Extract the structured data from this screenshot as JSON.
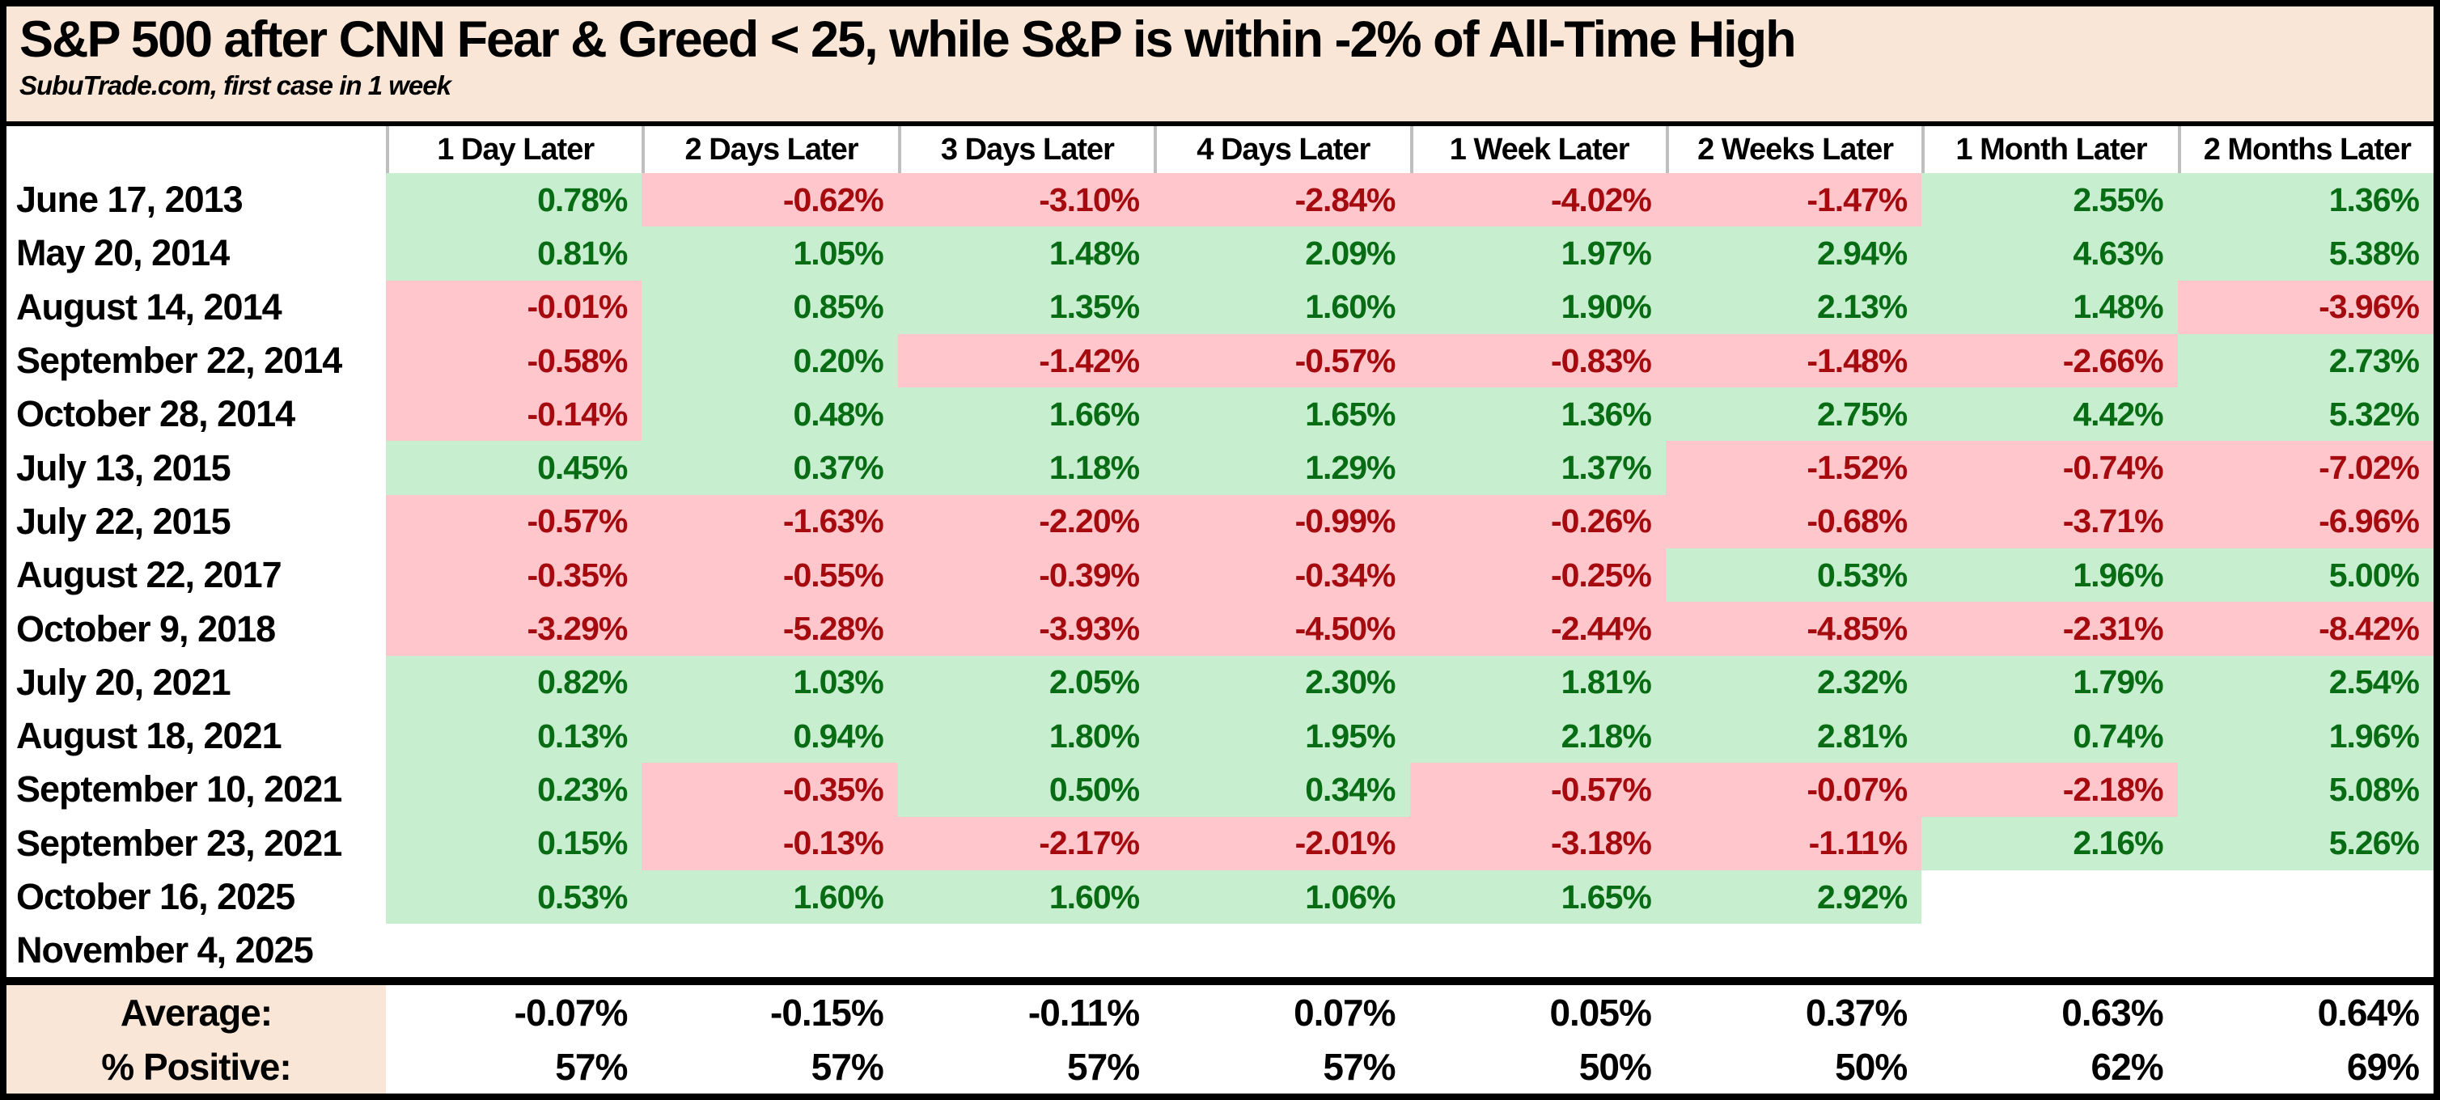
{
  "title": "S&P 500 after CNN Fear & Greed < 25, while S&P is within -2% of All-Time High",
  "subtitle": "SubuTrade.com, first case in 1 week",
  "columns": [
    "1 Day Later",
    "2 Days Later",
    "3 Days Later",
    "4 Days Later",
    "1 Week Later",
    "2 Weeks Later",
    "1 Month Later",
    "2 Months Later"
  ],
  "rows": [
    {
      "date": "June 17, 2013",
      "values": [
        "0.78%",
        "-0.62%",
        "-3.10%",
        "-2.84%",
        "-4.02%",
        "-1.47%",
        "2.55%",
        "1.36%"
      ]
    },
    {
      "date": "May 20, 2014",
      "values": [
        "0.81%",
        "1.05%",
        "1.48%",
        "2.09%",
        "1.97%",
        "2.94%",
        "4.63%",
        "5.38%"
      ]
    },
    {
      "date": "August 14, 2014",
      "values": [
        "-0.01%",
        "0.85%",
        "1.35%",
        "1.60%",
        "1.90%",
        "2.13%",
        "1.48%",
        "-3.96%"
      ]
    },
    {
      "date": "September 22, 2014",
      "values": [
        "-0.58%",
        "0.20%",
        "-1.42%",
        "-0.57%",
        "-0.83%",
        "-1.48%",
        "-2.66%",
        "2.73%"
      ]
    },
    {
      "date": "October 28, 2014",
      "values": [
        "-0.14%",
        "0.48%",
        "1.66%",
        "1.65%",
        "1.36%",
        "2.75%",
        "4.42%",
        "5.32%"
      ]
    },
    {
      "date": "July 13, 2015",
      "values": [
        "0.45%",
        "0.37%",
        "1.18%",
        "1.29%",
        "1.37%",
        "-1.52%",
        "-0.74%",
        "-7.02%"
      ]
    },
    {
      "date": "July 22, 2015",
      "values": [
        "-0.57%",
        "-1.63%",
        "-2.20%",
        "-0.99%",
        "-0.26%",
        "-0.68%",
        "-3.71%",
        "-6.96%"
      ]
    },
    {
      "date": "August 22, 2017",
      "values": [
        "-0.35%",
        "-0.55%",
        "-0.39%",
        "-0.34%",
        "-0.25%",
        "0.53%",
        "1.96%",
        "5.00%"
      ]
    },
    {
      "date": "October 9, 2018",
      "values": [
        "-3.29%",
        "-5.28%",
        "-3.93%",
        "-4.50%",
        "-2.44%",
        "-4.85%",
        "-2.31%",
        "-8.42%"
      ]
    },
    {
      "date": "July 20, 2021",
      "values": [
        "0.82%",
        "1.03%",
        "2.05%",
        "2.30%",
        "1.81%",
        "2.32%",
        "1.79%",
        "2.54%"
      ]
    },
    {
      "date": "August 18, 2021",
      "values": [
        "0.13%",
        "0.94%",
        "1.80%",
        "1.95%",
        "2.18%",
        "2.81%",
        "0.74%",
        "1.96%"
      ]
    },
    {
      "date": "September 10, 2021",
      "values": [
        "0.23%",
        "-0.35%",
        "0.50%",
        "0.34%",
        "-0.57%",
        "-0.07%",
        "-2.18%",
        "5.08%"
      ]
    },
    {
      "date": "September 23, 2021",
      "values": [
        "0.15%",
        "-0.13%",
        "-2.17%",
        "-2.01%",
        "-3.18%",
        "-1.11%",
        "2.16%",
        "5.26%"
      ]
    },
    {
      "date": "October 16, 2025",
      "values": [
        "0.53%",
        "1.60%",
        "1.60%",
        "1.06%",
        "1.65%",
        "2.92%",
        null,
        null
      ]
    },
    {
      "date": "November 4, 2025",
      "values": [
        null,
        null,
        null,
        null,
        null,
        null,
        null,
        null
      ]
    }
  ],
  "summary": {
    "average_label": "Average:",
    "average_values": [
      "-0.07%",
      "-0.15%",
      "-0.11%",
      "0.07%",
      "0.05%",
      "0.37%",
      "0.63%",
      "0.64%"
    ],
    "positive_label": "% Positive:",
    "positive_values": [
      "57%",
      "57%",
      "57%",
      "57%",
      "50%",
      "50%",
      "62%",
      "69%"
    ]
  },
  "colors": {
    "band_bg": "#FAE6D6",
    "positive_bg": "#C7EECF",
    "positive_text": "#076C13",
    "negative_bg": "#FFC7CC",
    "negative_text": "#A50A0F",
    "header_divider": "#BFBFBF",
    "border": "#000000"
  },
  "chart_data": {
    "type": "table",
    "title": "S&P 500 after CNN Fear & Greed < 25, while S&P is within -2% of All-Time High",
    "subtitle": "SubuTrade.com, first case in 1 week",
    "columns": [
      "1 Day Later",
      "2 Days Later",
      "3 Days Later",
      "4 Days Later",
      "1 Week Later",
      "2 Weeks Later",
      "1 Month Later",
      "2 Months Later"
    ],
    "row_labels": [
      "June 17, 2013",
      "May 20, 2014",
      "August 14, 2014",
      "September 22, 2014",
      "October 28, 2014",
      "July 13, 2015",
      "July 22, 2015",
      "August 22, 2017",
      "October 9, 2018",
      "July 20, 2021",
      "August 18, 2021",
      "September 10, 2021",
      "September 23, 2021",
      "October 16, 2025",
      "November 4, 2025"
    ],
    "values_pct": [
      [
        0.78,
        -0.62,
        -3.1,
        -2.84,
        -4.02,
        -1.47,
        2.55,
        1.36
      ],
      [
        0.81,
        1.05,
        1.48,
        2.09,
        1.97,
        2.94,
        4.63,
        5.38
      ],
      [
        -0.01,
        0.85,
        1.35,
        1.6,
        1.9,
        2.13,
        1.48,
        -3.96
      ],
      [
        -0.58,
        0.2,
        -1.42,
        -0.57,
        -0.83,
        -1.48,
        -2.66,
        2.73
      ],
      [
        -0.14,
        0.48,
        1.66,
        1.65,
        1.36,
        2.75,
        4.42,
        5.32
      ],
      [
        0.45,
        0.37,
        1.18,
        1.29,
        1.37,
        -1.52,
        -0.74,
        -7.02
      ],
      [
        -0.57,
        -1.63,
        -2.2,
        -0.99,
        -0.26,
        -0.68,
        -3.71,
        -6.96
      ],
      [
        -0.35,
        -0.55,
        -0.39,
        -0.34,
        -0.25,
        0.53,
        1.96,
        5.0
      ],
      [
        -3.29,
        -5.28,
        -3.93,
        -4.5,
        -2.44,
        -4.85,
        -2.31,
        -8.42
      ],
      [
        0.82,
        1.03,
        2.05,
        2.3,
        1.81,
        2.32,
        1.79,
        2.54
      ],
      [
        0.13,
        0.94,
        1.8,
        1.95,
        2.18,
        2.81,
        0.74,
        1.96
      ],
      [
        0.23,
        -0.35,
        0.5,
        0.34,
        -0.57,
        -0.07,
        -2.18,
        5.08
      ],
      [
        0.15,
        -0.13,
        -2.17,
        -2.01,
        -3.18,
        -1.11,
        2.16,
        5.26
      ],
      [
        0.53,
        1.6,
        1.6,
        1.06,
        1.65,
        2.92,
        null,
        null
      ],
      [
        null,
        null,
        null,
        null,
        null,
        null,
        null,
        null
      ]
    ],
    "average_pct": [
      -0.07,
      -0.15,
      -0.11,
      0.07,
      0.05,
      0.37,
      0.63,
      0.64
    ],
    "percent_positive": [
      57,
      57,
      57,
      57,
      50,
      50,
      62,
      69
    ],
    "cell_color_rule": "green fill for value >= 0, pink fill for value < 0, empty cells white"
  }
}
